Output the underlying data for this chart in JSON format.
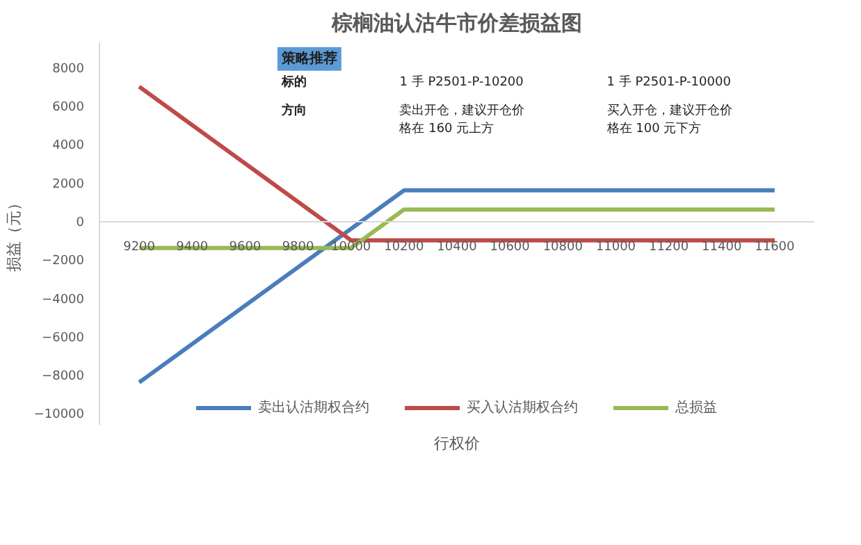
{
  "chart_data": {
    "type": "line",
    "title": "棕榈油认沽牛市价差损益图",
    "xlabel": "行权价",
    "ylabel": "损益（元）",
    "x": [
      9200,
      9400,
      9600,
      9800,
      10000,
      10200,
      10400,
      10600,
      10800,
      11000,
      11200,
      11400,
      11600
    ],
    "series": [
      {
        "name": "卖出认沽期权合约",
        "color": "#4a7ebb",
        "values": [
          -8400,
          -6400,
          -4400,
          -2400,
          -400,
          1600,
          1600,
          1600,
          1600,
          1600,
          1600,
          1600,
          1600
        ]
      },
      {
        "name": "买入认沽期权合约",
        "color": "#be4b48",
        "values": [
          7000,
          5000,
          3000,
          1000,
          -1000,
          -1000,
          -1000,
          -1000,
          -1000,
          -1000,
          -1000,
          -1000,
          -1000
        ]
      },
      {
        "name": "总损益",
        "color": "#98b954",
        "values": [
          -1400,
          -1400,
          -1400,
          -1400,
          -1400,
          600,
          600,
          600,
          600,
          600,
          600,
          600,
          600
        ]
      }
    ],
    "xlim": [
      9050,
      11750
    ],
    "ylim": [
      -10600,
      9300
    ],
    "xticks": [
      9200,
      9400,
      9600,
      9800,
      10000,
      10200,
      10400,
      10600,
      10800,
      11000,
      11200,
      11400,
      11600
    ],
    "yticks": [
      -10000,
      -8000,
      -6000,
      -4000,
      -2000,
      0,
      2000,
      4000,
      6000,
      8000
    ],
    "grid": false,
    "legend": "bottom",
    "marker": "none",
    "line_style": "solid",
    "annotations": [
      "策略推荐",
      "标的",
      "1 手 P2501-P-10200",
      "1 手 P2501-P-10000",
      "方向",
      "卖出开仓，建议开仓价格在 160 元上方",
      "买入开仓，建议开仓价格在 100 元下方"
    ]
  }
}
